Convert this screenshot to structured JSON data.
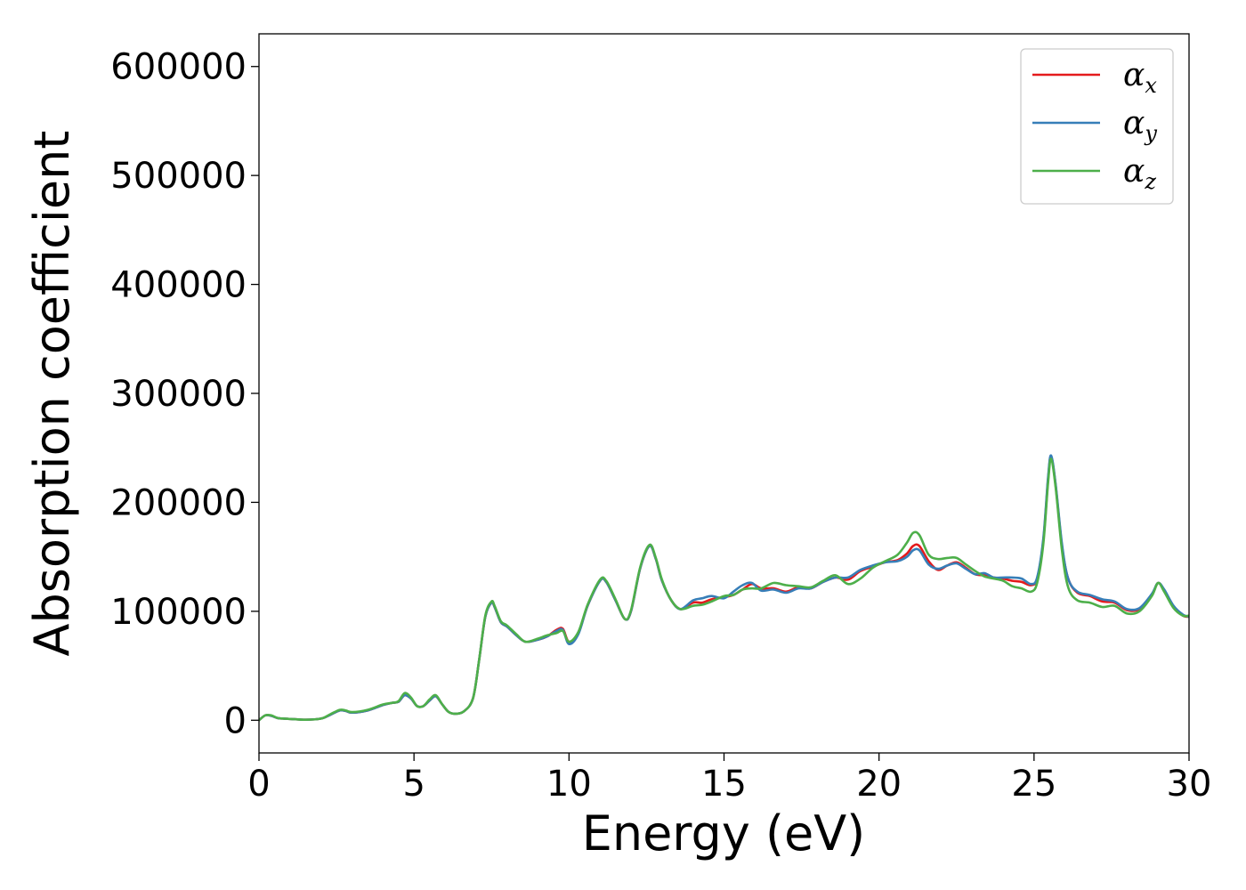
{
  "chart_data": {
    "type": "line",
    "title": "",
    "xlabel": "Energy (eV)",
    "ylabel": "Absorption coefficient",
    "xlim": [
      0,
      30
    ],
    "ylim": [
      -30000,
      630000
    ],
    "xticks": [
      0,
      5,
      10,
      15,
      20,
      25,
      30
    ],
    "xtick_labels": [
      "0",
      "5",
      "10",
      "15",
      "20",
      "25",
      "30"
    ],
    "yticks": [
      0,
      100000,
      200000,
      300000,
      400000,
      500000,
      600000
    ],
    "ytick_labels": [
      "0",
      "100000",
      "200000",
      "300000",
      "400000",
      "500000",
      "600000"
    ],
    "grid": false,
    "legend_position": "top-right",
    "legend": [
      {
        "symbol": "α",
        "subscript": "x",
        "color": "#e41a1c"
      },
      {
        "symbol": "α",
        "subscript": "y",
        "color": "#377eb8"
      },
      {
        "symbol": "α",
        "subscript": "z",
        "color": "#4daf4a"
      }
    ],
    "x": [
      0,
      0.2,
      0.4,
      0.6,
      0.8,
      1.0,
      1.5,
      2.0,
      2.3,
      2.6,
      2.8,
      3.0,
      3.5,
      4.0,
      4.3,
      4.5,
      4.7,
      4.9,
      5.1,
      5.3,
      5.5,
      5.7,
      5.9,
      6.1,
      6.3,
      6.6,
      6.9,
      7.1,
      7.3,
      7.5,
      7.6,
      7.8,
      8.0,
      8.3,
      8.6,
      9.0,
      9.3,
      9.6,
      9.8,
      10.0,
      10.3,
      10.6,
      11.0,
      11.2,
      11.5,
      11.8,
      12.0,
      12.3,
      12.6,
      12.8,
      13.0,
      13.3,
      13.6,
      14.0,
      14.3,
      14.6,
      15.0,
      15.3,
      15.6,
      15.9,
      16.2,
      16.6,
      17.0,
      17.4,
      17.8,
      18.2,
      18.6,
      19.0,
      19.4,
      19.8,
      20.2,
      20.6,
      20.9,
      21.1,
      21.3,
      21.6,
      21.9,
      22.2,
      22.5,
      22.8,
      23.1,
      23.4,
      23.7,
      24.0,
      24.3,
      24.6,
      24.9,
      25.1,
      25.3,
      25.45,
      25.55,
      25.7,
      25.9,
      26.1,
      26.4,
      26.8,
      27.2,
      27.6,
      28.0,
      28.4,
      28.8,
      29.0,
      29.2,
      29.5,
      29.8,
      30.0
    ],
    "series": [
      {
        "legend_index": 0,
        "color": "#e41a1c",
        "values": [
          0,
          4500,
          4000,
          2000,
          1500,
          1200,
          500,
          1500,
          5000,
          9000,
          8500,
          7000,
          9000,
          14000,
          16000,
          17000,
          23000,
          20000,
          13000,
          13000,
          18000,
          22000,
          15000,
          8000,
          6000,
          8000,
          20000,
          55000,
          95000,
          108000,
          104000,
          90000,
          86000,
          78000,
          72000,
          74000,
          77000,
          83000,
          84000,
          72000,
          80000,
          105000,
          128000,
          127000,
          110000,
          93000,
          100000,
          140000,
          160000,
          148000,
          128000,
          110000,
          102000,
          108000,
          108000,
          111000,
          113000,
          115000,
          120000,
          125000,
          121000,
          121000,
          118000,
          122000,
          121000,
          127000,
          131000,
          129000,
          137000,
          141000,
          145000,
          147000,
          153000,
          160000,
          160000,
          146000,
          138000,
          142000,
          145000,
          140000,
          134000,
          133000,
          131000,
          130000,
          128000,
          127000,
          124000,
          130000,
          165000,
          220000,
          242000,
          215000,
          160000,
          130000,
          117000,
          114000,
          109000,
          108000,
          101000,
          102000,
          115000,
          126000,
          119000,
          104000,
          96000,
          95000
        ]
      },
      {
        "legend_index": 1,
        "color": "#377eb8",
        "values": [
          0,
          4500,
          4000,
          2000,
          1500,
          1200,
          500,
          1500,
          5000,
          9000,
          8500,
          7000,
          9000,
          14000,
          16000,
          17000,
          23000,
          20000,
          13000,
          13000,
          18000,
          22000,
          15000,
          8000,
          6000,
          8000,
          20000,
          55000,
          95000,
          108000,
          104000,
          90000,
          86000,
          78000,
          72000,
          74000,
          77000,
          82000,
          83000,
          70000,
          79000,
          105000,
          128000,
          127000,
          110000,
          93000,
          100000,
          140000,
          160000,
          148000,
          128000,
          110000,
          102000,
          110000,
          112000,
          114000,
          112000,
          118000,
          124000,
          126000,
          119000,
          120000,
          117000,
          121000,
          121000,
          127000,
          131000,
          131000,
          138000,
          142000,
          145000,
          146000,
          150000,
          156000,
          156000,
          143000,
          139000,
          142000,
          144000,
          139000,
          134000,
          135000,
          131000,
          131000,
          131000,
          130000,
          125000,
          131000,
          167000,
          222000,
          243000,
          216000,
          162000,
          130000,
          118000,
          115000,
          111000,
          109000,
          102000,
          103000,
          116000,
          126000,
          120000,
          105000,
          97000,
          95000
        ]
      },
      {
        "legend_index": 2,
        "color": "#4daf4a",
        "values": [
          0,
          4500,
          4500,
          2000,
          1500,
          1200,
          500,
          1500,
          5500,
          9500,
          9000,
          7500,
          9500,
          14500,
          16000,
          17500,
          25000,
          21000,
          13000,
          13000,
          19000,
          23000,
          15000,
          8000,
          6000,
          8000,
          20000,
          55000,
          96000,
          109000,
          105000,
          91000,
          87000,
          79000,
          72000,
          75000,
          78000,
          80000,
          82000,
          72000,
          81000,
          106000,
          129000,
          128000,
          111000,
          93000,
          101000,
          141000,
          161000,
          149000,
          129000,
          110000,
          102000,
          105000,
          106000,
          109000,
          114000,
          115000,
          120000,
          121000,
          121000,
          126000,
          124000,
          123000,
          122000,
          128000,
          133000,
          125000,
          130000,
          140000,
          146000,
          152000,
          163000,
          172000,
          170000,
          152000,
          148000,
          149000,
          149000,
          143000,
          137000,
          132000,
          130000,
          128000,
          123000,
          121000,
          118000,
          126000,
          162000,
          217000,
          240000,
          213000,
          156000,
          122000,
          110000,
          108000,
          104000,
          105000,
          98000,
          100000,
          114000,
          126000,
          118000,
          103000,
          96000,
          96000
        ]
      }
    ]
  }
}
